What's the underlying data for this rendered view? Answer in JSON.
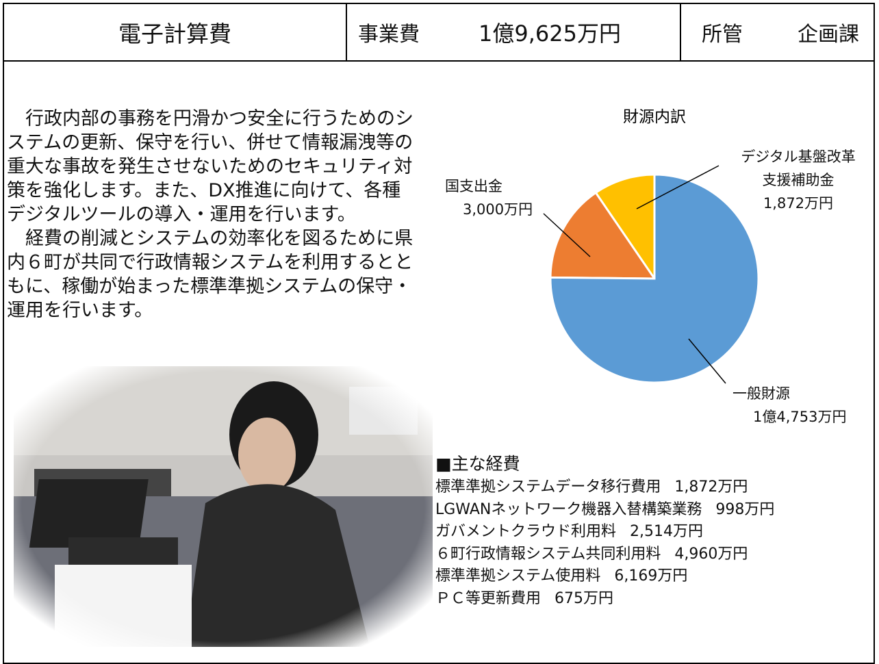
{
  "header": {
    "title": "電子計算費",
    "cost_label": "事業費",
    "cost": "1億9,625万円",
    "dept_label": "所管",
    "dept": "企画課"
  },
  "paragraphs": [
    "　行政内部の事務を円滑かつ安全に行うためのシステムの更新、保守を行い、併せて情報漏洩等の重大な事故を発生させないためのセキュリティ対策を強化します。また、DX推進に向けて、各種デジタルツールの導入・運用を行います。",
    "　経費の削減とシステムの効率化を図るために県内６町が共同で行政情報システムを利用するとともに、稼働が始まった標準準拠システムの保守・運用を行います。"
  ],
  "chart_data": {
    "type": "pie",
    "title": "財源内訳",
    "categories": [
      "一般財源",
      "国支出金",
      "デジタル基盤改革支援補助金"
    ],
    "values": [
      14753,
      3000,
      1872
    ],
    "value_labels": [
      "1億4,753万円",
      "3,000万円",
      "1,872万円"
    ],
    "colors": [
      "#5b9bd5",
      "#ed7d31",
      "#ffc000"
    ]
  },
  "costs": {
    "heading": "■主な経費",
    "items": [
      {
        "name": "標準準拠システムデータ移行費用",
        "amount": "1,872万円"
      },
      {
        "name": "LGWANネットワーク機器入替構築業務",
        "amount": "998万円"
      },
      {
        "name": "ガバメントクラウド利用料",
        "amount": "2,514万円"
      },
      {
        "name": "６町行政情報システム共同利用料",
        "amount": "4,960万円"
      },
      {
        "name": "標準準拠システム使用料",
        "amount": "6,169万円"
      },
      {
        "name": "ＰＣ等更新費用",
        "amount": "675万円"
      }
    ]
  }
}
